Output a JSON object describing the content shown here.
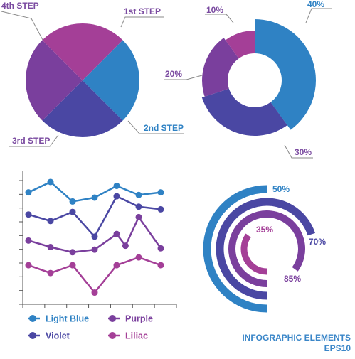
{
  "colors": {
    "blue": "#2f82c4",
    "indigo": "#4a47a3",
    "purple": "#7a3f9d",
    "magenta": "#a43f97",
    "label": "#7a4aa0",
    "leader": "#888888",
    "axis": "#555555"
  },
  "chart_data": [
    {
      "type": "pie",
      "labels": [
        "1st STEP",
        "2nd STEP",
        "3rd STEP",
        "4th STEP"
      ],
      "values": [
        25,
        25,
        25,
        25
      ],
      "colors": [
        "#2f82c4",
        "#4a47a3",
        "#7a3f9d",
        "#a43f97"
      ]
    },
    {
      "type": "pie",
      "subtype": "donut",
      "labels": [
        "40%",
        "30%",
        "20%",
        "10%"
      ],
      "values": [
        40,
        30,
        20,
        10
      ],
      "colors": [
        "#2f82c4",
        "#4a47a3",
        "#7a3f9d",
        "#a43f97"
      ]
    },
    {
      "type": "line",
      "x": [
        1,
        2,
        3,
        4,
        5,
        6,
        7
      ],
      "ylim": [
        0,
        10
      ],
      "grid": false,
      "series": [
        {
          "name": "Light Blue",
          "color": "#2f82c4",
          "x": [
            1,
            2,
            3,
            4,
            5,
            6,
            7
          ],
          "values": [
            8.6,
            9.4,
            7.9,
            8.2,
            9.1,
            8.4,
            8.6
          ]
        },
        {
          "name": "Violet",
          "color": "#4a47a3",
          "x": [
            1,
            2,
            3,
            4,
            5,
            6,
            7
          ],
          "values": [
            6.9,
            6.4,
            7.1,
            5.2,
            8.3,
            7.5,
            7.3
          ]
        },
        {
          "name": "Purple",
          "color": "#7a3f9d",
          "x": [
            1,
            2,
            3,
            4,
            5,
            5.4,
            6,
            7
          ],
          "values": [
            4.9,
            4.4,
            4.0,
            4.2,
            5.4,
            4.5,
            6.7,
            4.3
          ]
        },
        {
          "name": "Liliac",
          "color": "#a43f97",
          "x": [
            1,
            2,
            3,
            4,
            5,
            6,
            7
          ],
          "values": [
            3.0,
            2.4,
            3.0,
            0.9,
            3.0,
            3.6,
            3.0
          ]
        }
      ],
      "legend": {
        "position": "bottom",
        "items": [
          "Light Blue",
          "Purple",
          "Violet",
          "Liliac"
        ]
      }
    },
    {
      "type": "bar",
      "subtype": "radial",
      "labels": [
        "50%",
        "70%",
        "85%",
        "35%"
      ],
      "values": [
        50,
        70,
        85,
        35
      ],
      "colors": [
        "#2f82c4",
        "#4a47a3",
        "#7a3f9d",
        "#a43f97"
      ]
    }
  ],
  "footer": {
    "line1": "INFOGRAPHIC ELEMENTS",
    "line2": "EPS10"
  }
}
